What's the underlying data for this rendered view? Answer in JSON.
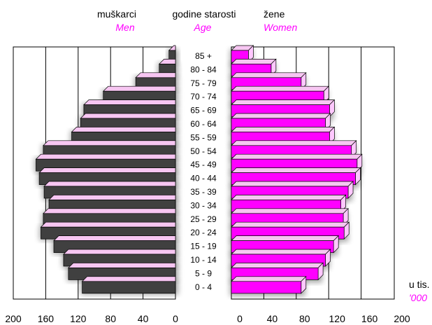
{
  "chart_data": {
    "type": "bar",
    "subtype": "population-pyramid",
    "headings": {
      "men": "muškarci",
      "men_en": "Men",
      "age": "godine starosti",
      "age_en": "Age",
      "women": "žene",
      "women_en": "Women"
    },
    "unit": {
      "local": "u tis.",
      "english": "'000"
    },
    "categories": [
      "85 +",
      "80 - 84",
      "75 - 79",
      "70 - 74",
      "65 - 69",
      "60 - 64",
      "55 - 59",
      "50 - 54",
      "45 - 49",
      "40 - 44",
      "35 - 39",
      "30 - 34",
      "25 - 29",
      "20 - 24",
      "15 - 19",
      "10 - 14",
      "5 - 9",
      "0 - 4"
    ],
    "series": [
      {
        "name": "Men",
        "values": [
          8,
          20,
          49,
          89,
          113,
          117,
          128,
          163,
          172,
          168,
          162,
          156,
          163,
          166,
          150,
          138,
          132,
          115
        ]
      },
      {
        "name": "Women",
        "values": [
          21,
          49,
          86,
          114,
          121,
          116,
          121,
          148,
          155,
          153,
          144,
          135,
          138,
          139,
          126,
          116,
          107,
          86
        ]
      }
    ],
    "x_ticks_left": [
      "200",
      "160",
      "120",
      "80",
      "40",
      "0"
    ],
    "x_ticks_right": [
      "0",
      "40",
      "80",
      "120",
      "160",
      "200"
    ],
    "xlim": [
      0,
      200
    ],
    "grid": true,
    "colors": {
      "men_bar": "#404040",
      "women_bar": "#ff00ff",
      "bar_top_face": "#f7c6f2",
      "bar_side_face": "#ffc8ff",
      "subtitle_en": "#ff00ff"
    }
  }
}
